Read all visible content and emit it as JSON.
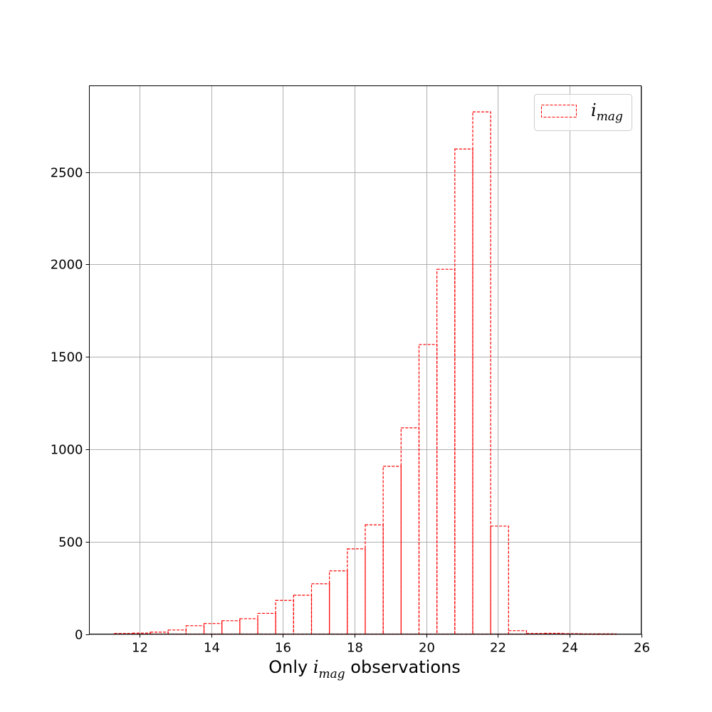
{
  "chart_data": {
    "type": "bar",
    "histtype": "step",
    "bin_edges": [
      11.3,
      11.8,
      12.3,
      12.8,
      13.3,
      13.8,
      14.3,
      14.8,
      15.3,
      15.8,
      16.3,
      16.8,
      17.3,
      17.8,
      18.3,
      18.8,
      19.3,
      19.8,
      20.3,
      20.8,
      21.3,
      21.8,
      22.3,
      22.8,
      23.3,
      23.8,
      24.3,
      24.8,
      25.3
    ],
    "values": [
      3,
      5,
      10,
      22,
      45,
      57,
      72,
      83,
      112,
      182,
      210,
      272,
      342,
      461,
      591,
      908,
      1116,
      1567,
      1974,
      2625,
      2826,
      584,
      18,
      3,
      4,
      2,
      1,
      1
    ],
    "bar_color": "#ff0000",
    "linestyle": "dashed",
    "xlim": [
      10.6,
      26
    ],
    "ylim": [
      0,
      2967
    ],
    "x_ticks": [
      12,
      14,
      16,
      18,
      20,
      22,
      24,
      26
    ],
    "y_ticks": [
      0,
      500,
      1000,
      1500,
      2000,
      2500
    ],
    "xlabel": {
      "prefix": "Only ",
      "var": "i",
      "sub": "mag",
      "suffix": " observations"
    },
    "ylabel": "",
    "grid": true,
    "legend": {
      "placement": "top-right",
      "var": "i",
      "sub": "mag"
    }
  }
}
